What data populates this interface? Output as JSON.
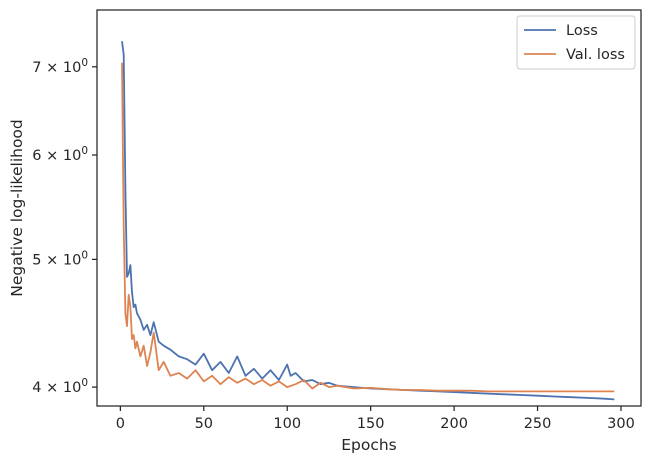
{
  "chart_data": {
    "type": "line",
    "title": "",
    "xlabel": "Epochs",
    "ylabel": "Negative log-likelihood",
    "yscale": "log",
    "xlim": [
      -14,
      312
    ],
    "ylim": [
      3.87,
      7.73
    ],
    "xticks": [
      0,
      50,
      100,
      150,
      200,
      250,
      300
    ],
    "xtick_labels": [
      "0",
      "50",
      "100",
      "150",
      "200",
      "250",
      "300"
    ],
    "yticks": [
      4,
      5,
      6,
      7
    ],
    "ytick_labels": [
      "4 × 10",
      "5 × 10",
      "6 × 10",
      "7 × 10"
    ],
    "ytick_exponent": "0",
    "grid": false,
    "legend_position": "top-right",
    "series": [
      {
        "name": "Loss",
        "color": "#4c72b0",
        "x": [
          1,
          2,
          3,
          4,
          5,
          6,
          7,
          8,
          9,
          10,
          12,
          14,
          16,
          18,
          20,
          23,
          26,
          30,
          35,
          40,
          45,
          50,
          55,
          60,
          65,
          70,
          75,
          80,
          85,
          90,
          95,
          100,
          102,
          105,
          110,
          115,
          120,
          125,
          130,
          140,
          150,
          160,
          170,
          180,
          190,
          200,
          210,
          220,
          230,
          240,
          250,
          260,
          270,
          280,
          290,
          296
        ],
        "y": [
          7.32,
          7.15,
          5.65,
          4.85,
          4.88,
          4.95,
          4.72,
          4.6,
          4.62,
          4.55,
          4.5,
          4.42,
          4.46,
          4.38,
          4.48,
          4.33,
          4.3,
          4.27,
          4.22,
          4.2,
          4.16,
          4.24,
          4.12,
          4.18,
          4.1,
          4.22,
          4.08,
          4.13,
          4.06,
          4.12,
          4.05,
          4.16,
          4.08,
          4.1,
          4.04,
          4.05,
          4.02,
          4.03,
          4.01,
          4.0,
          3.99,
          3.985,
          3.98,
          3.975,
          3.97,
          3.965,
          3.96,
          3.955,
          3.95,
          3.945,
          3.94,
          3.935,
          3.93,
          3.925,
          3.92,
          3.915
        ]
      },
      {
        "name": "Val. loss",
        "color": "#dd8452",
        "x": [
          1,
          2,
          3,
          4,
          5,
          6,
          7,
          8,
          9,
          10,
          12,
          14,
          16,
          18,
          20,
          23,
          26,
          30,
          35,
          40,
          45,
          50,
          55,
          60,
          65,
          70,
          75,
          80,
          85,
          90,
          95,
          100,
          105,
          110,
          115,
          120,
          125,
          130,
          140,
          150,
          160,
          170,
          180,
          190,
          200,
          210,
          220,
          230,
          240,
          250,
          260,
          270,
          280,
          290,
          296
        ],
        "y": [
          7.05,
          5.3,
          4.55,
          4.45,
          4.7,
          4.6,
          4.35,
          4.38,
          4.28,
          4.33,
          4.22,
          4.3,
          4.15,
          4.25,
          4.4,
          4.12,
          4.18,
          4.08,
          4.1,
          4.06,
          4.12,
          4.04,
          4.08,
          4.02,
          4.07,
          4.03,
          4.06,
          4.02,
          4.05,
          4.01,
          4.04,
          4.0,
          4.02,
          4.05,
          3.99,
          4.03,
          4.0,
          4.01,
          3.99,
          3.995,
          3.985,
          3.98,
          3.98,
          3.975,
          3.975,
          3.975,
          3.97,
          3.97,
          3.97,
          3.97,
          3.97,
          3.97,
          3.97,
          3.97,
          3.97
        ]
      }
    ]
  }
}
